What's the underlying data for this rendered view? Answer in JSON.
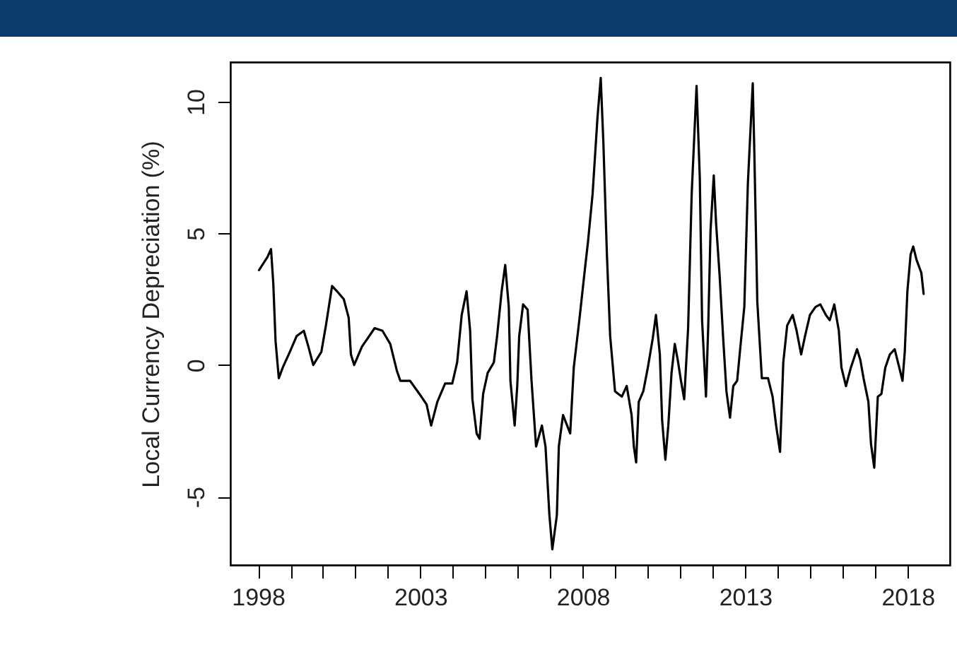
{
  "chart_data": {
    "type": "line",
    "ylabel": "Local Currency Depreciation (%)",
    "xlim": [
      1997.15,
      2019.3
    ],
    "ylim": [
      -7.6,
      11.5
    ],
    "xticks": [
      1998,
      {
        "value": 1999,
        "label": null
      },
      {
        "value": 2000,
        "label": null
      },
      {
        "value": 2001,
        "label": null
      },
      {
        "value": 2002,
        "label": null
      },
      2003,
      {
        "value": 2004,
        "label": null
      },
      {
        "value": 2005,
        "label": null
      },
      {
        "value": 2006,
        "label": null
      },
      {
        "value": 2007,
        "label": null
      },
      2008,
      {
        "value": 2009,
        "label": null
      },
      {
        "value": 2010,
        "label": null
      },
      {
        "value": 2011,
        "label": null
      },
      {
        "value": 2012,
        "label": null
      },
      2013,
      {
        "value": 2014,
        "label": null
      },
      {
        "value": 2015,
        "label": null
      },
      {
        "value": 2016,
        "label": null
      },
      {
        "value": 2017,
        "label": null
      },
      2018
    ],
    "yticks": [
      -5,
      0,
      5,
      10
    ],
    "grid": false,
    "marker": "none",
    "line_style": "solid",
    "series": [
      {
        "color": "#000000",
        "x": [
          1998.03,
          1998.29,
          1998.4,
          1998.47,
          1998.54,
          1998.64,
          1998.76,
          1998.98,
          1999.19,
          1999.41,
          1999.55,
          1999.7,
          1999.95,
          2000.09,
          2000.28,
          2000.43,
          2000.64,
          2000.79,
          2000.86,
          2000.96,
          2001.2,
          2001.37,
          2001.59,
          2001.83,
          2002.07,
          2002.27,
          2002.38,
          2002.68,
          2002.97,
          2003.19,
          2003.33,
          2003.52,
          2003.76,
          2003.98,
          2004.13,
          2004.27,
          2004.42,
          2004.53,
          2004.6,
          2004.73,
          2004.82,
          2004.93,
          2005.07,
          2005.26,
          2005.36,
          2005.5,
          2005.61,
          2005.72,
          2005.77,
          2005.9,
          2005.98,
          2006.04,
          2006.16,
          2006.3,
          2006.42,
          2006.56,
          2006.74,
          2006.85,
          2006.97,
          2007.06,
          2007.2,
          2007.26,
          2007.39,
          2007.61,
          2007.72,
          2007.9,
          2008.05,
          2008.16,
          2008.3,
          2008.45,
          2008.55,
          2008.63,
          2008.74,
          2008.84,
          2008.99,
          2009.2,
          2009.35,
          2009.5,
          2009.57,
          2009.64,
          2009.72,
          2009.86,
          2010.0,
          2010.15,
          2010.25,
          2010.37,
          2010.44,
          2010.54,
          2010.63,
          2010.73,
          2010.83,
          2010.92,
          2011.02,
          2011.12,
          2011.24,
          2011.35,
          2011.5,
          2011.6,
          2011.67,
          2011.79,
          2011.86,
          2011.93,
          2012.03,
          2012.1,
          2012.21,
          2012.32,
          2012.42,
          2012.53,
          2012.63,
          2012.75,
          2012.85,
          2012.97,
          2013.08,
          2013.23,
          2013.28,
          2013.37,
          2013.51,
          2013.7,
          2013.84,
          2013.95,
          2014.07,
          2014.17,
          2014.29,
          2014.46,
          2014.58,
          2014.72,
          2014.84,
          2014.99,
          2015.16,
          2015.31,
          2015.48,
          2015.6,
          2015.74,
          2015.88,
          2015.96,
          2016.1,
          2016.25,
          2016.44,
          2016.54,
          2016.64,
          2016.79,
          2016.87,
          2016.97,
          2017.08,
          2017.19,
          2017.31,
          2017.45,
          2017.6,
          2017.74,
          2017.84,
          2017.91,
          2017.99,
          2018.09,
          2018.17,
          2018.27,
          2018.42,
          2018.49
        ],
        "values": [
          3.6,
          4.1,
          4.4,
          3.1,
          0.9,
          -0.5,
          -0.1,
          0.5,
          1.1,
          1.3,
          0.7,
          0,
          0.5,
          1.5,
          3.0,
          2.8,
          2.5,
          1.8,
          0.4,
          0,
          0.7,
          1.0,
          1.4,
          1.3,
          0.8,
          -0.2,
          -0.6,
          -0.6,
          -1.1,
          -1.5,
          -2.3,
          -1.4,
          -0.7,
          -0.7,
          0.1,
          1.9,
          2.8,
          1.3,
          -1.3,
          -2.6,
          -2.8,
          -1.1,
          -0.3,
          0.1,
          1.1,
          2.8,
          3.8,
          2.2,
          -0.6,
          -2.3,
          -0.8,
          1.1,
          2.3,
          2.1,
          -0.6,
          -3.1,
          -2.3,
          -3.1,
          -5.7,
          -7.0,
          -5.7,
          -3.1,
          -1.9,
          -2.6,
          -0.1,
          1.8,
          3.5,
          4.7,
          6.5,
          9.4,
          10.9,
          8.5,
          4.2,
          1.1,
          -1.0,
          -1.2,
          -0.8,
          -1.9,
          -3.1,
          -3.7,
          -1.4,
          -1.0,
          -0.1,
          1.0,
          1.9,
          0.4,
          -2.1,
          -3.6,
          -2.3,
          -0.3,
          0.8,
          0.2,
          -0.6,
          -1.3,
          1.4,
          6.5,
          10.6,
          7.1,
          1.7,
          -1.2,
          1.5,
          5.1,
          7.2,
          5.4,
          3.4,
          1.0,
          -1.0,
          -2.0,
          -0.8,
          -0.6,
          0.7,
          2.2,
          6.9,
          10.7,
          8.0,
          2.4,
          -0.5,
          -0.5,
          -1.2,
          -2.3,
          -3.3,
          0.1,
          1.5,
          1.9,
          1.3,
          0.4,
          1.1,
          1.9,
          2.2,
          2.3,
          1.9,
          1.7,
          2.3,
          1.3,
          -0.1,
          -0.8,
          -0.1,
          0.6,
          0.2,
          -0.5,
          -1.4,
          -3.0,
          -3.9,
          -1.2,
          -1.1,
          -0.1,
          0.4,
          0.6,
          -0.1,
          -0.6,
          0.5,
          2.8,
          4.2,
          4.5,
          4.0,
          3.5,
          2.7
        ]
      }
    ]
  }
}
